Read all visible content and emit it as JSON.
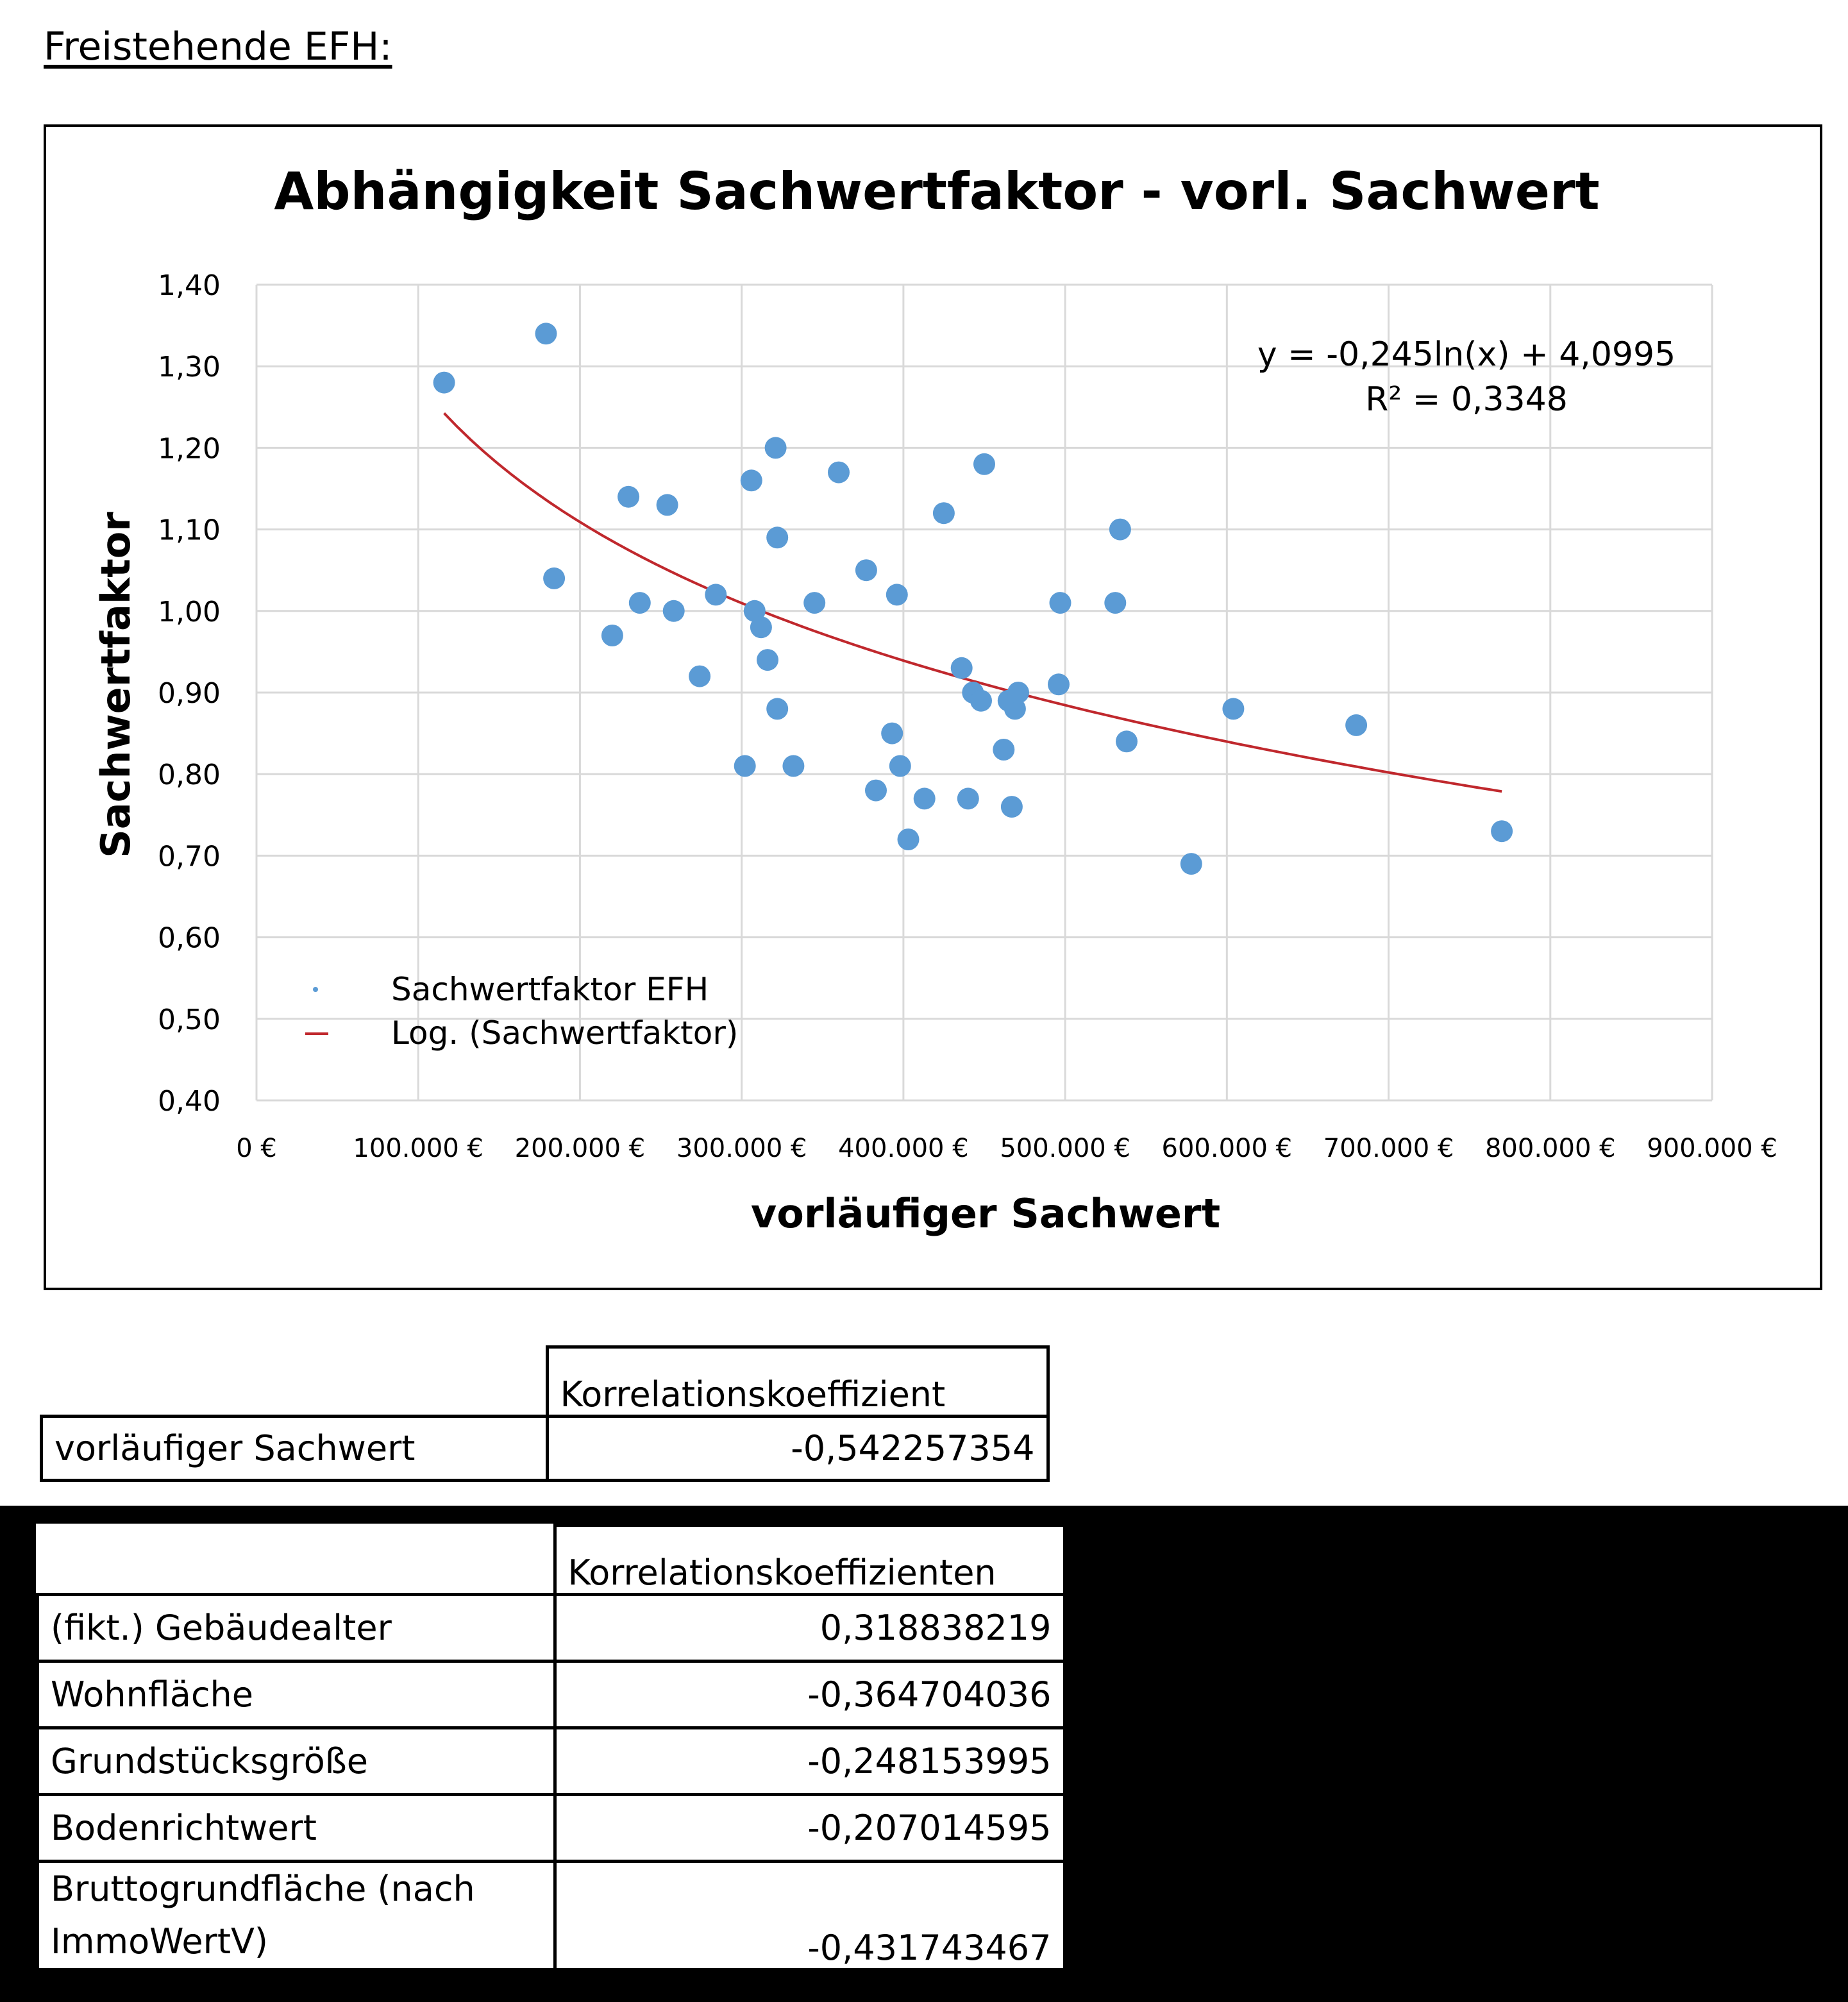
{
  "heading": "Freistehende EFH:",
  "chart_data": {
    "type": "scatter",
    "title": "Abhängigkeit Sachwertfaktor - vorl. Sachwert",
    "xlabel": "vorläufiger Sachwert",
    "ylabel": "Sachwertfaktor",
    "xlim": [
      0,
      900000
    ],
    "ylim": [
      0.4,
      1.4
    ],
    "x_ticks": [
      "0 €",
      "100.000 €",
      "200.000 €",
      "300.000 €",
      "400.000 €",
      "500.000 €",
      "600.000 €",
      "700.000 €",
      "800.000 €",
      "900.000 €"
    ],
    "y_ticks": [
      "0,40",
      "0,50",
      "0,60",
      "0,70",
      "0,80",
      "0,90",
      "1,00",
      "1,10",
      "1,20",
      "1,30",
      "1,40"
    ],
    "grid": true,
    "legend_position": "bottom-left",
    "series": [
      {
        "name": "Sachwertfaktor EFH",
        "color": "#5b9bd5",
        "points": [
          [
            116000,
            1.28
          ],
          [
            179000,
            1.34
          ],
          [
            184000,
            1.04
          ],
          [
            220000,
            0.97
          ],
          [
            230000,
            1.14
          ],
          [
            237000,
            1.01
          ],
          [
            254000,
            1.13
          ],
          [
            258000,
            1.0
          ],
          [
            274000,
            0.92
          ],
          [
            284000,
            1.02
          ],
          [
            302000,
            0.81
          ],
          [
            306000,
            1.16
          ],
          [
            308000,
            1.0
          ],
          [
            312000,
            0.98
          ],
          [
            316000,
            0.94
          ],
          [
            321000,
            1.2
          ],
          [
            322000,
            1.09
          ],
          [
            322000,
            0.88
          ],
          [
            332000,
            0.81
          ],
          [
            345000,
            1.01
          ],
          [
            360000,
            1.17
          ],
          [
            377000,
            1.05
          ],
          [
            383000,
            0.78
          ],
          [
            393000,
            0.85
          ],
          [
            396000,
            1.02
          ],
          [
            398000,
            0.81
          ],
          [
            403000,
            0.72
          ],
          [
            413000,
            0.77
          ],
          [
            425000,
            1.12
          ],
          [
            436000,
            0.93
          ],
          [
            440000,
            0.77
          ],
          [
            443000,
            0.9
          ],
          [
            448000,
            0.89
          ],
          [
            450000,
            1.18
          ],
          [
            462000,
            0.83
          ],
          [
            465000,
            0.89
          ],
          [
            467000,
            0.76
          ],
          [
            469000,
            0.88
          ],
          [
            471000,
            0.9
          ],
          [
            496000,
            0.91
          ],
          [
            497000,
            1.01
          ],
          [
            531000,
            1.01
          ],
          [
            534000,
            1.1
          ],
          [
            538000,
            0.84
          ],
          [
            578000,
            0.69
          ],
          [
            604000,
            0.88
          ],
          [
            680000,
            0.86
          ],
          [
            770000,
            0.73
          ]
        ]
      },
      {
        "name": "Log. (Sachwertfaktor)",
        "color": "#c0282d",
        "fit": "log",
        "a": -0.245,
        "b": 4.0995,
        "x_range": [
          116000,
          770000
        ]
      }
    ],
    "annotation": {
      "equation": "y = -0,245ln(x) + 4,0995",
      "r2": "R² = 0,3348"
    }
  },
  "table1": {
    "header": "Korrelationskoeffizient",
    "rows": [
      {
        "label": "vorläufiger Sachwert",
        "value": "-0,542257354"
      }
    ]
  },
  "table2": {
    "header": "Korrelationskoeffizienten",
    "rows": [
      {
        "label": "(fikt.) Gebäudealter",
        "value": "0,318838219"
      },
      {
        "label": "Wohnfläche",
        "value": "-0,364704036"
      },
      {
        "label": "Grundstücksgröße",
        "value": "-0,248153995"
      },
      {
        "label": "Bodenrichtwert",
        "value": "-0,207014595"
      },
      {
        "label": "Bruttogrundfläche (nach ImmoWertV)",
        "value": "-0,431743467"
      }
    ]
  }
}
